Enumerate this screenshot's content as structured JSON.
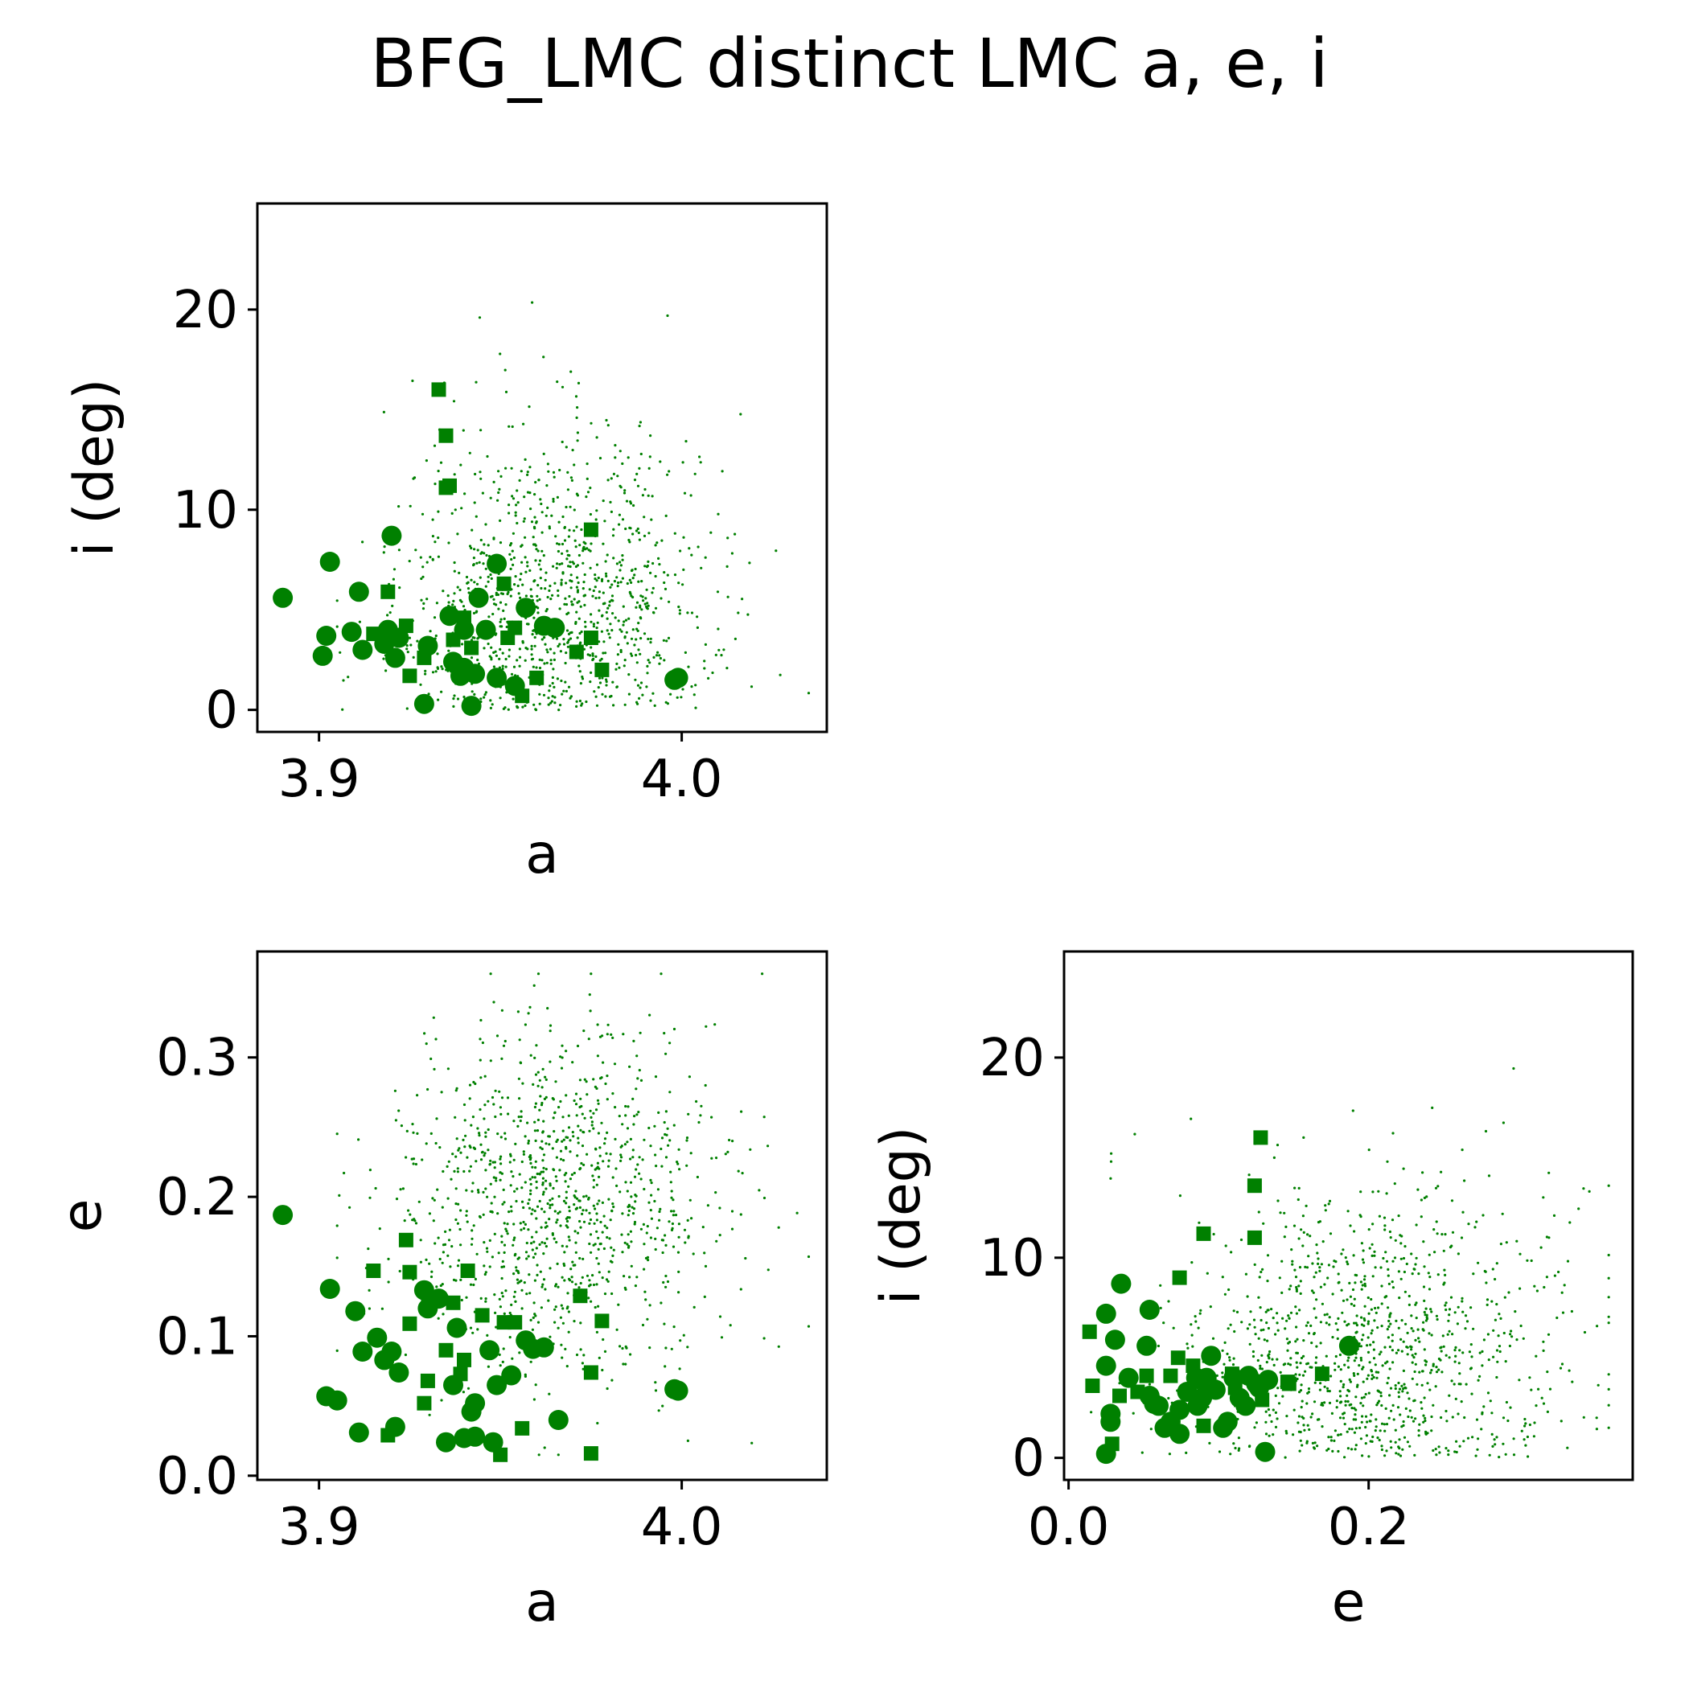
{
  "figure": {
    "title": "BFG_LMC distinct LMC a, e, i",
    "color": "#008000"
  },
  "chart_data": [
    {
      "type": "scatter",
      "panel": "top-left",
      "xlabel": "a",
      "ylabel": "i (deg)",
      "xlim": [
        3.883,
        4.04
      ],
      "ylim": [
        -1.1,
        25.3
      ],
      "xticks": [
        {
          "value": 3.9,
          "label": "3.9"
        },
        {
          "value": 4.0,
          "label": "4.0"
        }
      ],
      "yticks": [
        {
          "value": 0,
          "label": "0"
        },
        {
          "value": 10,
          "label": "10"
        },
        {
          "value": 20,
          "label": "20"
        }
      ],
      "series": [
        {
          "marker": "circle",
          "points": [
            [
              3.89,
              5.6
            ],
            [
              3.903,
              7.4
            ],
            [
              3.902,
              3.7
            ],
            [
              3.901,
              2.7
            ],
            [
              3.909,
              3.9
            ],
            [
              3.911,
              5.9
            ],
            [
              3.912,
              3.0
            ],
            [
              3.918,
              3.3
            ],
            [
              3.919,
              4.0
            ],
            [
              3.92,
              8.7
            ],
            [
              3.921,
              2.6
            ],
            [
              3.922,
              3.6
            ],
            [
              3.929,
              0.3
            ],
            [
              3.93,
              3.2
            ],
            [
              3.936,
              4.7
            ],
            [
              3.937,
              2.4
            ],
            [
              3.939,
              1.7
            ],
            [
              3.94,
              2.1
            ],
            [
              3.94,
              4.0
            ],
            [
              3.942,
              0.2
            ],
            [
              3.943,
              1.8
            ],
            [
              3.944,
              5.6
            ],
            [
              3.946,
              4.0
            ],
            [
              3.949,
              7.3
            ],
            [
              3.949,
              1.6
            ],
            [
              3.954,
              1.2
            ],
            [
              3.957,
              5.1
            ],
            [
              3.962,
              4.2
            ],
            [
              3.965,
              4.1
            ],
            [
              3.998,
              1.5
            ],
            [
              3.999,
              1.6
            ]
          ]
        },
        {
          "marker": "square",
          "points": [
            [
              3.915,
              3.8
            ],
            [
              3.919,
              5.9
            ],
            [
              3.924,
              4.2
            ],
            [
              3.925,
              1.7
            ],
            [
              3.929,
              2.6
            ],
            [
              3.933,
              16.0
            ],
            [
              3.935,
              13.7
            ],
            [
              3.935,
              11.1
            ],
            [
              3.936,
              11.2
            ],
            [
              3.937,
              3.5
            ],
            [
              3.94,
              4.6
            ],
            [
              3.942,
              3.1
            ],
            [
              3.951,
              6.3
            ],
            [
              3.952,
              3.6
            ],
            [
              3.954,
              4.1
            ],
            [
              3.956,
              0.7
            ],
            [
              3.96,
              1.6
            ],
            [
              3.971,
              2.9
            ],
            [
              3.975,
              9.0
            ],
            [
              3.975,
              3.6
            ],
            [
              3.978,
              2.0
            ]
          ]
        },
        {
          "marker": "dot",
          "points": []
        }
      ]
    },
    {
      "type": "scatter",
      "panel": "bottom-left",
      "xlabel": "a",
      "ylabel": "e",
      "xlim": [
        3.883,
        4.04
      ],
      "ylim": [
        -0.003,
        0.376
      ],
      "xticks": [
        {
          "value": 3.9,
          "label": "3.9"
        },
        {
          "value": 4.0,
          "label": "4.0"
        }
      ],
      "yticks": [
        {
          "value": 0.0,
          "label": "0.0"
        },
        {
          "value": 0.1,
          "label": "0.1"
        },
        {
          "value": 0.2,
          "label": "0.2"
        },
        {
          "value": 0.3,
          "label": "0.3"
        }
      ],
      "series": [
        {
          "marker": "circle",
          "points": [
            [
              3.89,
              0.187
            ],
            [
              3.903,
              0.134
            ],
            [
              3.902,
              0.057
            ],
            [
              3.905,
              0.054
            ],
            [
              3.91,
              0.118
            ],
            [
              3.911,
              0.031
            ],
            [
              3.912,
              0.089
            ],
            [
              3.916,
              0.099
            ],
            [
              3.918,
              0.083
            ],
            [
              3.92,
              0.089
            ],
            [
              3.921,
              0.035
            ],
            [
              3.922,
              0.074
            ],
            [
              3.929,
              0.133
            ],
            [
              3.93,
              0.12
            ],
            [
              3.933,
              0.127
            ],
            [
              3.935,
              0.024
            ],
            [
              3.937,
              0.065
            ],
            [
              3.938,
              0.106
            ],
            [
              3.94,
              0.027
            ],
            [
              3.942,
              0.046
            ],
            [
              3.943,
              0.028
            ],
            [
              3.943,
              0.052
            ],
            [
              3.947,
              0.09
            ],
            [
              3.948,
              0.024
            ],
            [
              3.949,
              0.065
            ],
            [
              3.953,
              0.072
            ],
            [
              3.957,
              0.097
            ],
            [
              3.959,
              0.091
            ],
            [
              3.962,
              0.092
            ],
            [
              3.966,
              0.04
            ],
            [
              3.998,
              0.062
            ],
            [
              3.999,
              0.061
            ]
          ]
        },
        {
          "marker": "square",
          "points": [
            [
              3.915,
              0.147
            ],
            [
              3.919,
              0.029
            ],
            [
              3.924,
              0.169
            ],
            [
              3.925,
              0.146
            ],
            [
              3.925,
              0.109
            ],
            [
              3.929,
              0.052
            ],
            [
              3.93,
              0.068
            ],
            [
              3.935,
              0.09
            ],
            [
              3.937,
              0.124
            ],
            [
              3.939,
              0.073
            ],
            [
              3.94,
              0.083
            ],
            [
              3.941,
              0.147
            ],
            [
              3.942,
              0.046
            ],
            [
              3.945,
              0.115
            ],
            [
              3.951,
              0.11
            ],
            [
              3.954,
              0.11
            ],
            [
              3.956,
              0.034
            ],
            [
              3.95,
              0.015
            ],
            [
              3.972,
              0.129
            ],
            [
              3.975,
              0.074
            ],
            [
              3.975,
              0.016
            ],
            [
              3.978,
              0.111
            ]
          ]
        },
        {
          "marker": "dot",
          "points": []
        }
      ]
    },
    {
      "type": "scatter",
      "panel": "bottom-right",
      "xlabel": "e",
      "ylabel": "i (deg)",
      "xlim": [
        -0.003,
        0.376
      ],
      "ylim": [
        -1.1,
        25.3
      ],
      "xticks": [
        {
          "value": 0.0,
          "label": "0.0"
        },
        {
          "value": 0.2,
          "label": "0.2"
        }
      ],
      "yticks": [
        {
          "value": 0,
          "label": "0"
        },
        {
          "value": 10,
          "label": "10"
        },
        {
          "value": 20,
          "label": "20"
        }
      ],
      "series": [
        {
          "marker": "circle",
          "points": [
            [
              0.025,
              7.2
            ],
            [
              0.025,
              4.6
            ],
            [
              0.025,
              0.2
            ],
            [
              0.028,
              2.2
            ],
            [
              0.028,
              1.8
            ],
            [
              0.031,
              5.9
            ],
            [
              0.035,
              8.7
            ],
            [
              0.04,
              4.0
            ],
            [
              0.052,
              5.6
            ],
            [
              0.054,
              7.4
            ],
            [
              0.054,
              3.1
            ],
            [
              0.057,
              2.7
            ],
            [
              0.06,
              2.6
            ],
            [
              0.064,
              1.5
            ],
            [
              0.068,
              1.8
            ],
            [
              0.074,
              2.4
            ],
            [
              0.074,
              1.2
            ],
            [
              0.079,
              3.3
            ],
            [
              0.085,
              4.0
            ],
            [
              0.086,
              2.6
            ],
            [
              0.089,
              3.0
            ],
            [
              0.09,
              3.9
            ],
            [
              0.092,
              4.0
            ],
            [
              0.095,
              5.1
            ],
            [
              0.098,
              3.4
            ],
            [
              0.103,
              1.5
            ],
            [
              0.106,
              1.8
            ],
            [
              0.11,
              4.0
            ],
            [
              0.114,
              3.0
            ],
            [
              0.118,
              2.6
            ],
            [
              0.12,
              4.1
            ],
            [
              0.125,
              3.7
            ],
            [
              0.127,
              3.5
            ],
            [
              0.131,
              0.3
            ],
            [
              0.133,
              3.9
            ],
            [
              0.187,
              5.6
            ]
          ]
        },
        {
          "marker": "square",
          "points": [
            [
              0.014,
              6.3
            ],
            [
              0.016,
              3.6
            ],
            [
              0.029,
              0.7
            ],
            [
              0.034,
              3.1
            ],
            [
              0.046,
              3.3
            ],
            [
              0.052,
              4.1
            ],
            [
              0.068,
              4.1
            ],
            [
              0.073,
              5.0
            ],
            [
              0.074,
              9.0
            ],
            [
              0.083,
              4.6
            ],
            [
              0.09,
              11.2
            ],
            [
              0.09,
              1.6
            ],
            [
              0.109,
              4.2
            ],
            [
              0.111,
              3.5
            ],
            [
              0.115,
              2.9
            ],
            [
              0.124,
              13.6
            ],
            [
              0.124,
              11.0
            ],
            [
              0.128,
              16.0
            ],
            [
              0.129,
              2.9
            ],
            [
              0.146,
              3.8
            ],
            [
              0.147,
              3.7
            ],
            [
              0.169,
              4.2
            ]
          ]
        },
        {
          "marker": "dot",
          "points": []
        }
      ]
    }
  ]
}
